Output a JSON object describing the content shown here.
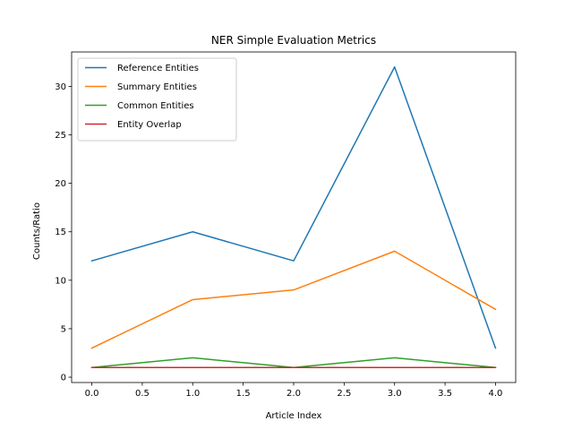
{
  "chart_data": {
    "type": "line",
    "title": "NER Simple Evaluation Metrics",
    "xlabel": "Article Index",
    "ylabel": "Counts/Ratio",
    "x": [
      0,
      1,
      2,
      3,
      4
    ],
    "xlim": [
      -0.2,
      4.2
    ],
    "ylim": [
      -0.55,
      33.55
    ],
    "xticks": [
      0.0,
      0.5,
      1.0,
      1.5,
      2.0,
      2.5,
      3.0,
      3.5,
      4.0
    ],
    "xtick_labels": [
      "0.0",
      "0.5",
      "1.0",
      "1.5",
      "2.0",
      "2.5",
      "3.0",
      "3.5",
      "4.0"
    ],
    "yticks": [
      0,
      5,
      10,
      15,
      20,
      25,
      30
    ],
    "ytick_labels": [
      "0",
      "5",
      "10",
      "15",
      "20",
      "25",
      "30"
    ],
    "grid": false,
    "legend_position": "upper-left",
    "series": [
      {
        "name": "Reference Entities",
        "color": "#1f77b4",
        "values": [
          12,
          15,
          12,
          32,
          3
        ]
      },
      {
        "name": "Summary Entities",
        "color": "#ff7f0e",
        "values": [
          3,
          8,
          9,
          13,
          7
        ]
      },
      {
        "name": "Common Entities",
        "color": "#2ca02c",
        "values": [
          1,
          2,
          1,
          2,
          1
        ]
      },
      {
        "name": "Entity Overlap",
        "color": "#d62728",
        "values": [
          1.0,
          1.0,
          1.0,
          1.0,
          1.0
        ]
      }
    ]
  }
}
